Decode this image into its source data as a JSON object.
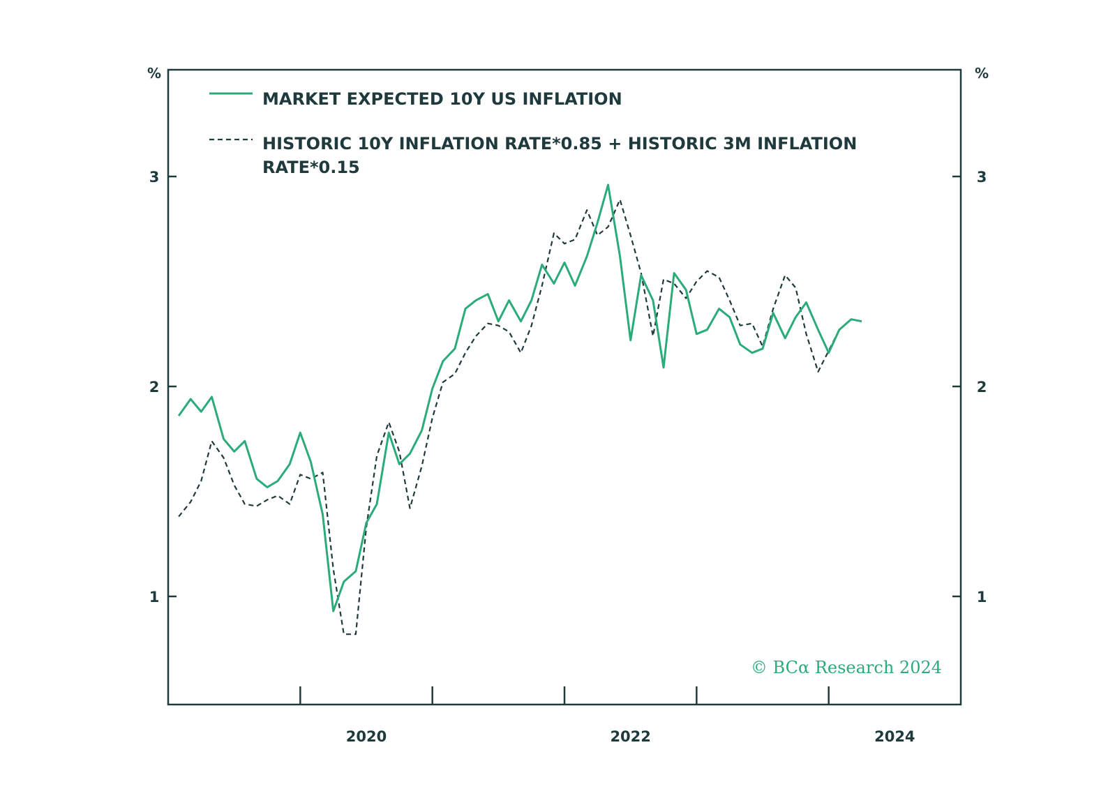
{
  "chart_data": {
    "type": "line",
    "title": "",
    "units": {
      "left": "%",
      "right": "%"
    },
    "ylim": [
      0.5,
      3.5
    ],
    "y_ticks": [
      1,
      2,
      3
    ],
    "x_range": [
      2019.0,
      2025.0
    ],
    "x_ticks": [
      2020,
      2022,
      2024
    ],
    "x_minor_ticks": [
      2020,
      2021,
      2022,
      2023,
      2024
    ],
    "legend": {
      "entry1": "MARKET EXPECTED 10Y US INFLATION",
      "entry2_line1": "HISTORIC 10Y INFLATION RATE*0.85 + HISTORIC 3M INFLATION",
      "entry2_line2": "RATE*0.15"
    },
    "watermark": "© BCα Research 2024",
    "colors": {
      "solid": "#2bab7a",
      "dashed": "#1f3a3d",
      "axis": "#1f3a3d"
    },
    "series": [
      {
        "name": "MARKET EXPECTED 10Y US INFLATION",
        "style": "solid",
        "x": [
          2019.08,
          2019.17,
          2019.25,
          2019.33,
          2019.42,
          2019.5,
          2019.58,
          2019.67,
          2019.75,
          2019.83,
          2019.92,
          2020.0,
          2020.08,
          2020.17,
          2020.25,
          2020.33,
          2020.42,
          2020.5,
          2020.58,
          2020.67,
          2020.75,
          2020.83,
          2020.92,
          2021.0,
          2021.08,
          2021.17,
          2021.25,
          2021.33,
          2021.42,
          2021.5,
          2021.58,
          2021.67,
          2021.75,
          2021.83,
          2021.92,
          2022.0,
          2022.08,
          2022.17,
          2022.25,
          2022.33,
          2022.42,
          2022.5,
          2022.58,
          2022.67,
          2022.75,
          2022.83,
          2022.92,
          2023.0,
          2023.08,
          2023.17,
          2023.25,
          2023.33,
          2023.42,
          2023.5,
          2023.58,
          2023.67,
          2023.75,
          2023.83,
          2023.92,
          2024.0,
          2024.08,
          2024.17,
          2024.25
        ],
        "values": [
          1.86,
          1.94,
          1.88,
          1.95,
          1.75,
          1.69,
          1.74,
          1.56,
          1.52,
          1.55,
          1.63,
          1.78,
          1.64,
          1.39,
          0.93,
          1.07,
          1.12,
          1.35,
          1.44,
          1.78,
          1.63,
          1.68,
          1.79,
          1.99,
          2.12,
          2.18,
          2.37,
          2.41,
          2.44,
          2.31,
          2.41,
          2.31,
          2.41,
          2.58,
          2.49,
          2.59,
          2.48,
          2.62,
          2.78,
          2.96,
          2.62,
          2.22,
          2.53,
          2.41,
          2.09,
          2.54,
          2.46,
          2.25,
          2.27,
          2.37,
          2.33,
          2.2,
          2.16,
          2.18,
          2.35,
          2.23,
          2.33,
          2.4,
          2.27,
          2.16,
          2.27,
          2.32,
          2.31
        ]
      },
      {
        "name": "HISTORIC 10Y INFLATION RATE*0.85 + HISTORIC 3M INFLATION RATE*0.15",
        "style": "dashed",
        "x": [
          2019.08,
          2019.17,
          2019.25,
          2019.33,
          2019.42,
          2019.5,
          2019.58,
          2019.67,
          2019.75,
          2019.83,
          2019.92,
          2020.0,
          2020.08,
          2020.17,
          2020.25,
          2020.33,
          2020.42,
          2020.5,
          2020.58,
          2020.67,
          2020.75,
          2020.83,
          2020.92,
          2021.0,
          2021.08,
          2021.17,
          2021.25,
          2021.33,
          2021.42,
          2021.5,
          2021.58,
          2021.67,
          2021.75,
          2021.83,
          2021.92,
          2022.0,
          2022.08,
          2022.17,
          2022.25,
          2022.33,
          2022.42,
          2022.5,
          2022.58,
          2022.67,
          2022.75,
          2022.83,
          2022.92,
          2023.0,
          2023.08,
          2023.17,
          2023.25,
          2023.33,
          2023.42,
          2023.5,
          2023.58,
          2023.67,
          2023.75,
          2023.83,
          2023.92,
          2024.0,
          2024.08
        ],
        "values": [
          1.38,
          1.45,
          1.55,
          1.74,
          1.66,
          1.53,
          1.44,
          1.43,
          1.46,
          1.48,
          1.44,
          1.58,
          1.56,
          1.59,
          1.13,
          0.82,
          0.82,
          1.33,
          1.67,
          1.83,
          1.69,
          1.42,
          1.62,
          1.85,
          2.02,
          2.06,
          2.16,
          2.24,
          2.3,
          2.29,
          2.26,
          2.16,
          2.29,
          2.48,
          2.73,
          2.68,
          2.7,
          2.84,
          2.72,
          2.76,
          2.89,
          2.72,
          2.54,
          2.24,
          2.51,
          2.49,
          2.42,
          2.5,
          2.55,
          2.52,
          2.41,
          2.29,
          2.3,
          2.19,
          2.37,
          2.53,
          2.47,
          2.25,
          2.07,
          2.17,
          2.27
        ]
      }
    ]
  }
}
